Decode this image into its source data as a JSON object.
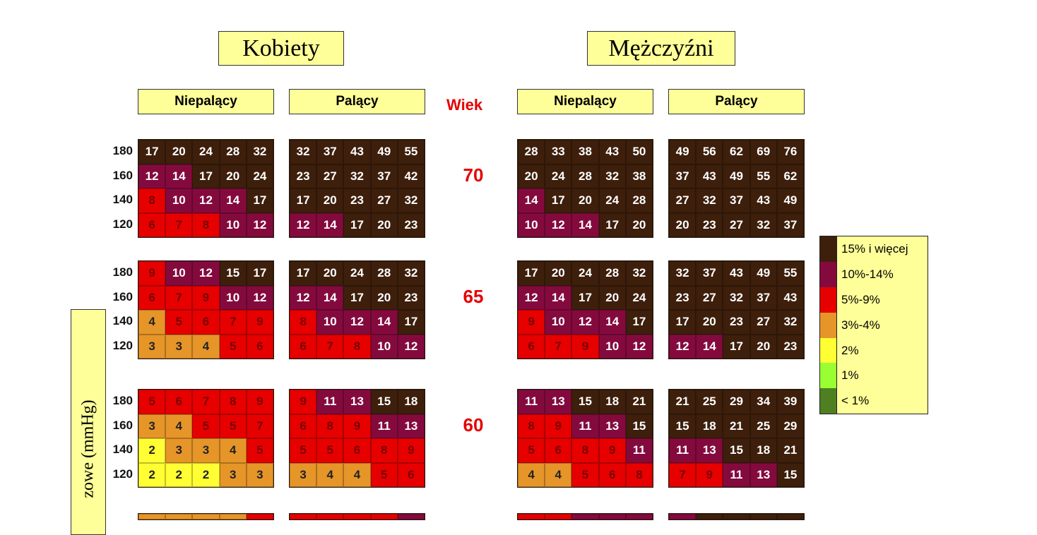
{
  "headers": {
    "women": "Kobiety",
    "men": "Mężczyźni",
    "nonsmoker": "Niepalący",
    "smoker": "Palący",
    "age": "Wiek"
  },
  "y_axis_label": "zowe (mmHg)",
  "row_labels": [
    "180",
    "160",
    "140",
    "120"
  ],
  "legend": [
    {
      "label": "15% i więcej",
      "color": "#3d1f0c"
    },
    {
      "label": "10%-14%",
      "color": "#840a3e"
    },
    {
      "label": "5%-9%",
      "color": "#e60000"
    },
    {
      "label": "3%-4%",
      "color": "#e69528"
    },
    {
      "label": "2%",
      "color": "#ffff33"
    },
    {
      "label": "1%",
      "color": "#99ff33"
    },
    {
      "label": "< 1%",
      "color": "#4e7f22"
    }
  ],
  "chart_data": {
    "type": "heatmap",
    "blocks": [
      {
        "age": "70",
        "women_nonsmoker": [
          [
            17,
            20,
            24,
            28,
            32
          ],
          [
            12,
            14,
            17,
            20,
            24
          ],
          [
            8,
            10,
            12,
            14,
            17
          ],
          [
            6,
            7,
            8,
            10,
            12
          ]
        ],
        "women_smoker": [
          [
            32,
            37,
            43,
            49,
            55
          ],
          [
            23,
            27,
            32,
            37,
            42
          ],
          [
            17,
            20,
            23,
            27,
            32
          ],
          [
            12,
            14,
            17,
            20,
            23
          ]
        ],
        "men_nonsmoker": [
          [
            28,
            33,
            38,
            43,
            50
          ],
          [
            20,
            24,
            28,
            32,
            38
          ],
          [
            14,
            17,
            20,
            24,
            28
          ],
          [
            10,
            12,
            14,
            17,
            20
          ]
        ],
        "men_smoker": [
          [
            49,
            56,
            62,
            69,
            76
          ],
          [
            37,
            43,
            49,
            55,
            62
          ],
          [
            27,
            32,
            37,
            43,
            49
          ],
          [
            20,
            23,
            27,
            32,
            37
          ]
        ]
      },
      {
        "age": "65",
        "women_nonsmoker": [
          [
            9,
            10,
            12,
            15,
            17
          ],
          [
            6,
            7,
            9,
            10,
            12
          ],
          [
            4,
            5,
            6,
            7,
            9
          ],
          [
            3,
            3,
            4,
            5,
            6
          ]
        ],
        "women_smoker": [
          [
            17,
            20,
            24,
            28,
            32
          ],
          [
            12,
            14,
            17,
            20,
            23
          ],
          [
            8,
            10,
            12,
            14,
            17
          ],
          [
            6,
            7,
            8,
            10,
            12
          ]
        ],
        "men_nonsmoker": [
          [
            17,
            20,
            24,
            28,
            32
          ],
          [
            12,
            14,
            17,
            20,
            24
          ],
          [
            9,
            10,
            12,
            14,
            17
          ],
          [
            6,
            7,
            9,
            10,
            12
          ]
        ],
        "men_smoker": [
          [
            32,
            37,
            43,
            49,
            55
          ],
          [
            23,
            27,
            32,
            37,
            43
          ],
          [
            17,
            20,
            23,
            27,
            32
          ],
          [
            12,
            14,
            17,
            20,
            23
          ]
        ]
      },
      {
        "age": "60",
        "women_nonsmoker": [
          [
            5,
            6,
            7,
            8,
            9
          ],
          [
            3,
            4,
            5,
            5,
            7
          ],
          [
            2,
            3,
            3,
            4,
            5
          ],
          [
            2,
            2,
            2,
            3,
            3
          ]
        ],
        "women_smoker": [
          [
            9,
            11,
            13,
            15,
            18
          ],
          [
            6,
            8,
            9,
            11,
            13
          ],
          [
            5,
            5,
            6,
            8,
            9
          ],
          [
            3,
            4,
            4,
            5,
            6
          ]
        ],
        "men_nonsmoker": [
          [
            11,
            13,
            15,
            18,
            21
          ],
          [
            8,
            9,
            11,
            13,
            15
          ],
          [
            5,
            6,
            8,
            9,
            11
          ],
          [
            4,
            4,
            5,
            6,
            8
          ]
        ],
        "men_smoker": [
          [
            21,
            25,
            29,
            34,
            39
          ],
          [
            15,
            18,
            21,
            25,
            29
          ],
          [
            11,
            13,
            15,
            18,
            21
          ],
          [
            7,
            9,
            11,
            13,
            15
          ]
        ]
      }
    ]
  }
}
